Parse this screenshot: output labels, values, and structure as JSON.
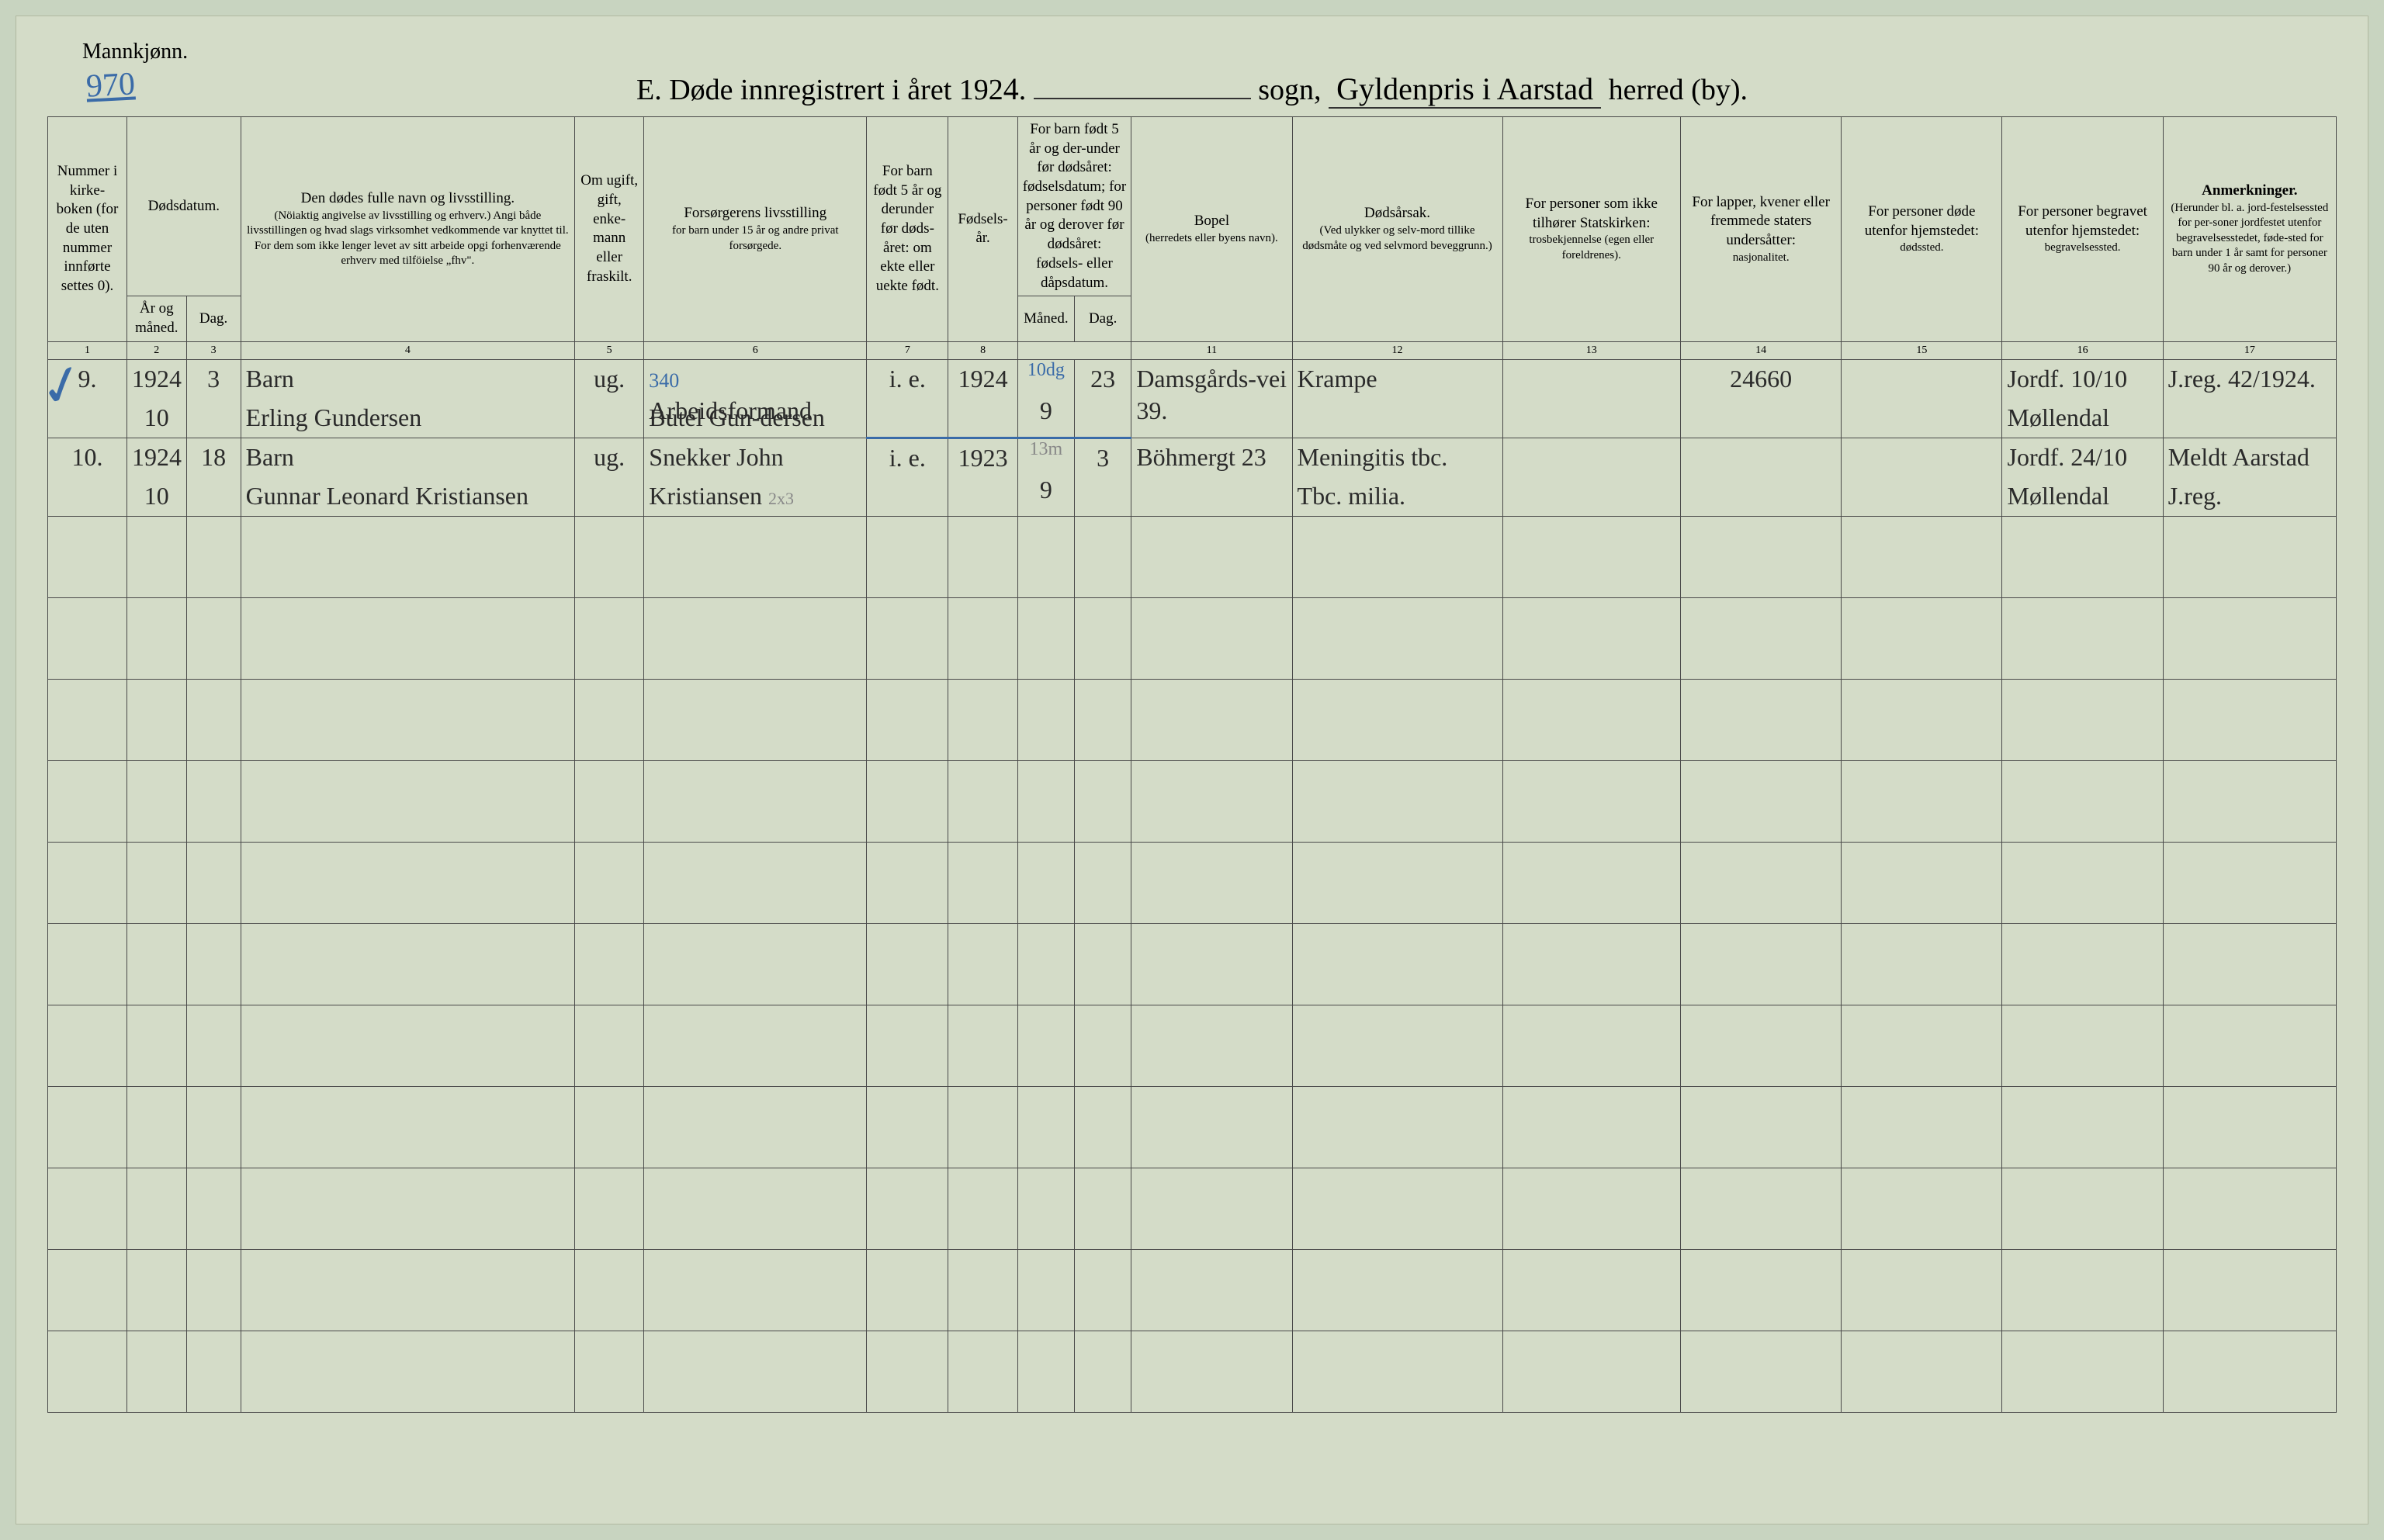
{
  "header": {
    "gender_label": "Mannkjønn.",
    "page_number": "970",
    "title_prefix": "E.  Døde innregistrert i året 192",
    "year_suffix": "4",
    "title_mid": ".",
    "sogn_label": "sogn,",
    "parish_handwritten": "Gyldenpris i Aarstad",
    "herred_label": "herred (by)."
  },
  "columns": {
    "c1": {
      "label": "Nummer i kirke-boken (for de uten nummer innførte settes 0)."
    },
    "c2_group": "Dødsdatum.",
    "c2": {
      "label": "År og måned."
    },
    "c3": {
      "label": "Dag."
    },
    "c4": {
      "label": "Den dødes fulle navn og livsstilling.",
      "sub": "(Nöiaktig angivelse av livsstilling og erhverv.) Angi både livsstillingen og hvad slags virksomhet vedkommende var knyttet til. For dem som ikke lenger levet av sitt arbeide opgi forhenværende erhverv med tilföielse „fhv\"."
    },
    "c5": {
      "label": "Om ugift, gift, enke-mann eller fraskilt."
    },
    "c6": {
      "label": "Forsørgerens livsstilling",
      "sub": "for barn under 15 år og andre privat forsørgede."
    },
    "c7": {
      "label": "For barn født 5 år og derunder før døds-året: om ekte eller uekte født."
    },
    "c8": {
      "label": "Fødsels-år."
    },
    "c9_10_group": "For barn født 5 år og der-under før dødsåret: fødselsdatum; for personer født 90 år og derover før dødsåret: fødsels- eller dåpsdatum.",
    "c9": {
      "label": "Måned."
    },
    "c10": {
      "label": "Dag."
    },
    "c11": {
      "label": "Bopel",
      "sub": "(herredets eller byens navn)."
    },
    "c12": {
      "label": "Dødsårsak.",
      "sub": "(Ved ulykker og selv-mord tillike dødsmåte og ved selvmord beveggrunn.)"
    },
    "c13": {
      "label": "For personer som ikke tilhører Statskirken:",
      "sub": "trosbekjennelse (egen eller foreldrenes)."
    },
    "c14": {
      "label": "For lapper, kvener eller fremmede staters undersåtter:",
      "sub": "nasjonalitet."
    },
    "c15": {
      "label": "For personer døde utenfor hjemstedet:",
      "sub": "dødssted."
    },
    "c16": {
      "label": "For personer begravet utenfor hjemstedet:",
      "sub": "begravelsessted."
    },
    "c17": {
      "label": "Anmerkninger.",
      "sub": "(Herunder bl. a. jord-festelsessted for per-soner jordfestet utenfor begravelsesstedet, føde-sted for barn under 1 år samt for personer 90 år og derover.)"
    }
  },
  "colnums": [
    "1",
    "2",
    "3",
    "4",
    "5",
    "6",
    "7",
    "8",
    "9",
    "10",
    "11",
    "12",
    "13",
    "14",
    "15",
    "16",
    "17"
  ],
  "rows": [
    {
      "num": "9.",
      "year_month_top": "1924",
      "year_month_bot": "10",
      "day": "3",
      "name_top": "Barn",
      "name_bot": "Erling Gundersen",
      "status": "ug.",
      "provider_annot": "340",
      "provider_top": "Arbeidsformand",
      "provider_bot": "Butel Gun-dersen",
      "legit": "i. e.",
      "birth_year": "1924",
      "birth_month_annot": "10dg",
      "birth_month": "9",
      "birth_day": "23",
      "residence": "Damsgårds-vei 39.",
      "cause": "Krampe",
      "col14_pencil": "24660",
      "burial_top": "Jordf. 10/10",
      "burial_bot": "Møllendal",
      "remarks": "J.reg. 42/1924."
    },
    {
      "num": "10.",
      "year_month_top": "1924",
      "year_month_bot": "10",
      "day": "18",
      "name_top": "Barn",
      "name_bot": "Gunnar Leonard Kristiansen",
      "status": "ug.",
      "provider_top": "Snekker John",
      "provider_bot": "Kristiansen",
      "provider_pencil": "2x3",
      "legit": "i. e.",
      "birth_year": "1923",
      "birth_month_annot": "13m",
      "birth_month": "9",
      "birth_day": "3",
      "residence": "Böhmergt 23",
      "cause_top": "Meningitis tbc.",
      "cause_bot": "Tbc. milia.",
      "burial_top": "Jordf. 24/10",
      "burial_bot": "Møllendal",
      "remarks_top": "Meldt Aarstad",
      "remarks_bot": "J.reg."
    }
  ],
  "empty_row_count": 11,
  "styling": {
    "page_bg": "#d4dcc8",
    "border_color": "#4a4a4a",
    "handwriting_color": "#2a2a2a",
    "blue_ink": "#3a6ba8",
    "pencil": "#888888",
    "print_font": "Georgia, Times New Roman, serif",
    "hand_font": "Brush Script MT, cursive",
    "header_fontsize": 19,
    "data_fontsize": 32
  }
}
